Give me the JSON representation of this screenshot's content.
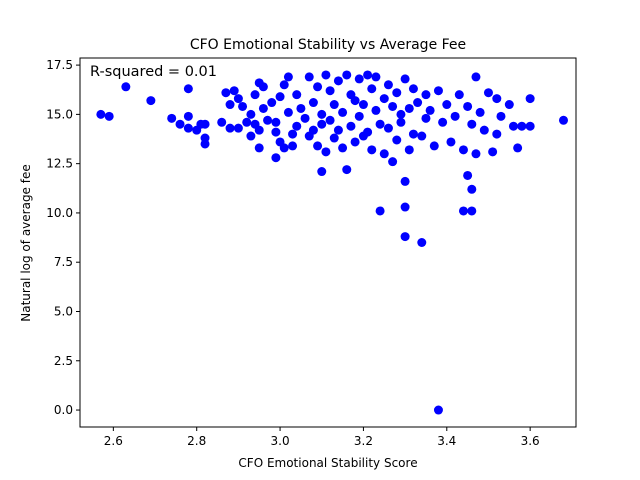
{
  "chart_data": {
    "type": "scatter",
    "title": "CFO Emotional Stability vs Average Fee",
    "xlabel": "CFO Emotional Stability Score",
    "ylabel": "Natural log of average fee",
    "annotation": "R-squared = 0.01",
    "xlim": [
      2.52,
      3.71
    ],
    "ylim": [
      -0.86,
      17.86
    ],
    "xticks": [
      2.6,
      2.8,
      3.0,
      3.2,
      3.4,
      3.6
    ],
    "yticks": [
      0.0,
      2.5,
      5.0,
      7.5,
      10.0,
      12.5,
      15.0,
      17.5
    ],
    "xtick_labels": [
      "2.6",
      "2.8",
      "3.0",
      "3.2",
      "3.4",
      "3.6"
    ],
    "ytick_labels": [
      "0.0",
      "2.5",
      "5.0",
      "7.5",
      "10.0",
      "12.5",
      "15.0",
      "17.5"
    ],
    "grid": false,
    "marker_color": "#0000ff",
    "series": [
      {
        "points": [
          [
            2.57,
            15.0
          ],
          [
            2.59,
            14.9
          ],
          [
            2.63,
            16.4
          ],
          [
            2.69,
            15.7
          ],
          [
            2.74,
            14.8
          ],
          [
            2.76,
            14.5
          ],
          [
            2.78,
            14.3
          ],
          [
            2.78,
            14.9
          ],
          [
            2.78,
            16.3
          ],
          [
            2.8,
            14.2
          ],
          [
            2.81,
            14.5
          ],
          [
            2.82,
            13.5
          ],
          [
            2.82,
            13.8
          ],
          [
            2.82,
            14.5
          ],
          [
            2.86,
            14.6
          ],
          [
            2.87,
            16.1
          ],
          [
            2.88,
            14.3
          ],
          [
            2.88,
            15.5
          ],
          [
            2.89,
            16.2
          ],
          [
            2.9,
            14.3
          ],
          [
            2.9,
            15.8
          ],
          [
            2.91,
            15.4
          ],
          [
            2.92,
            14.6
          ],
          [
            2.93,
            13.9
          ],
          [
            2.93,
            15.0
          ],
          [
            2.94,
            14.5
          ],
          [
            2.94,
            16.0
          ],
          [
            2.95,
            13.3
          ],
          [
            2.95,
            14.2
          ],
          [
            2.95,
            16.6
          ],
          [
            2.96,
            15.3
          ],
          [
            2.96,
            16.4
          ],
          [
            2.97,
            14.7
          ],
          [
            2.98,
            15.6
          ],
          [
            2.99,
            14.6
          ],
          [
            2.99,
            12.8
          ],
          [
            2.99,
            14.1
          ],
          [
            3.0,
            13.6
          ],
          [
            3.0,
            15.9
          ],
          [
            3.01,
            16.5
          ],
          [
            3.01,
            13.3
          ],
          [
            3.02,
            16.9
          ],
          [
            3.02,
            15.1
          ],
          [
            3.03,
            14.0
          ],
          [
            3.03,
            13.4
          ],
          [
            3.04,
            16.0
          ],
          [
            3.04,
            14.4
          ],
          [
            3.05,
            15.3
          ],
          [
            3.06,
            14.8
          ],
          [
            3.07,
            16.9
          ],
          [
            3.07,
            13.9
          ],
          [
            3.08,
            15.6
          ],
          [
            3.08,
            14.2
          ],
          [
            3.09,
            16.4
          ],
          [
            3.09,
            13.4
          ],
          [
            3.1,
            12.1
          ],
          [
            3.1,
            15.0
          ],
          [
            3.1,
            14.5
          ],
          [
            3.11,
            17.0
          ],
          [
            3.11,
            13.1
          ],
          [
            3.12,
            16.2
          ],
          [
            3.12,
            14.7
          ],
          [
            3.13,
            15.5
          ],
          [
            3.13,
            13.8
          ],
          [
            3.14,
            16.7
          ],
          [
            3.14,
            14.2
          ],
          [
            3.15,
            15.1
          ],
          [
            3.15,
            13.3
          ],
          [
            3.16,
            17.0
          ],
          [
            3.16,
            12.2
          ],
          [
            3.17,
            16.0
          ],
          [
            3.17,
            14.4
          ],
          [
            3.18,
            15.7
          ],
          [
            3.18,
            13.6
          ],
          [
            3.19,
            16.8
          ],
          [
            3.19,
            14.9
          ],
          [
            3.2,
            13.9
          ],
          [
            3.2,
            15.5
          ],
          [
            3.21,
            17.0
          ],
          [
            3.21,
            14.1
          ],
          [
            3.22,
            16.3
          ],
          [
            3.22,
            13.2
          ],
          [
            3.23,
            15.2
          ],
          [
            3.23,
            16.9
          ],
          [
            3.24,
            14.5
          ],
          [
            3.24,
            10.1
          ],
          [
            3.25,
            15.8
          ],
          [
            3.25,
            13.0
          ],
          [
            3.26,
            16.5
          ],
          [
            3.26,
            14.3
          ],
          [
            3.27,
            15.4
          ],
          [
            3.27,
            12.6
          ],
          [
            3.28,
            16.1
          ],
          [
            3.28,
            13.7
          ],
          [
            3.29,
            15.0
          ],
          [
            3.29,
            14.6
          ],
          [
            3.3,
            16.8
          ],
          [
            3.3,
            11.6
          ],
          [
            3.3,
            10.3
          ],
          [
            3.3,
            8.8
          ],
          [
            3.31,
            15.3
          ],
          [
            3.31,
            13.2
          ],
          [
            3.32,
            16.3
          ],
          [
            3.32,
            14.0
          ],
          [
            3.33,
            15.6
          ],
          [
            3.34,
            8.5
          ],
          [
            3.34,
            13.9
          ],
          [
            3.35,
            16.0
          ],
          [
            3.35,
            14.8
          ],
          [
            3.36,
            15.2
          ],
          [
            3.37,
            13.4
          ],
          [
            3.38,
            0.0
          ],
          [
            3.38,
            16.2
          ],
          [
            3.39,
            14.6
          ],
          [
            3.4,
            15.5
          ],
          [
            3.41,
            13.6
          ],
          [
            3.42,
            14.9
          ],
          [
            3.43,
            16.0
          ],
          [
            3.44,
            13.2
          ],
          [
            3.44,
            10.1
          ],
          [
            3.45,
            15.4
          ],
          [
            3.45,
            11.9
          ],
          [
            3.46,
            10.1
          ],
          [
            3.46,
            14.5
          ],
          [
            3.46,
            11.2
          ],
          [
            3.47,
            16.9
          ],
          [
            3.47,
            13.0
          ],
          [
            3.48,
            15.1
          ],
          [
            3.49,
            14.2
          ],
          [
            3.5,
            16.1
          ],
          [
            3.51,
            13.1
          ],
          [
            3.52,
            15.8
          ],
          [
            3.52,
            14.0
          ],
          [
            3.53,
            14.9
          ],
          [
            3.55,
            15.5
          ],
          [
            3.56,
            14.4
          ],
          [
            3.57,
            13.3
          ],
          [
            3.58,
            14.4
          ],
          [
            3.6,
            15.8
          ],
          [
            3.6,
            14.4
          ],
          [
            3.68,
            14.7
          ]
        ]
      }
    ]
  }
}
